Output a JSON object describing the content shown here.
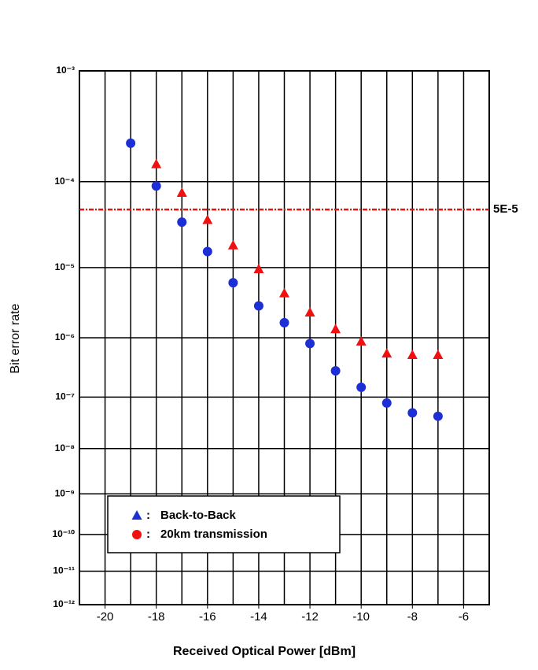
{
  "chart_data": {
    "type": "scatter",
    "xlabel": "Received Optical Power [dBm]",
    "ylabel": "Bit error rate",
    "x": [
      -19,
      -18,
      -17,
      -16,
      -15,
      -14,
      -13,
      -12,
      -11,
      -10,
      -9,
      -8,
      -7
    ],
    "series": [
      {
        "name": "Back-to-Back",
        "color": "#1c2fd6",
        "marker": "circle",
        "legend_marker": "triangle",
        "values": [
          0.00024,
          9e-05,
          3.6e-05,
          1.6e-05,
          6.3e-06,
          3e-06,
          1.7e-06,
          8.1e-07,
          2.9e-07,
          1.5e-07,
          7.8e-08,
          5.1e-08,
          4.4e-08
        ]
      },
      {
        "name": "20km transmission",
        "color": "#f01010",
        "marker": "triangle",
        "legend_marker": "circle",
        "values": [
          null,
          0.00015,
          7.6e-05,
          3.8e-05,
          1.9e-05,
          9.5e-06,
          4.5e-06,
          2.4e-06,
          1.35e-06,
          8.7e-07,
          5.6e-07,
          5.3e-07,
          5.3e-07
        ]
      }
    ],
    "xlim": [
      -21,
      -5
    ],
    "xticks": [
      -20,
      -18,
      -16,
      -14,
      -12,
      -10,
      -8,
      -6
    ],
    "xminorticks": [
      -19,
      -17,
      -15,
      -13,
      -11,
      -9,
      -7
    ],
    "ylim": [
      0.001,
      1e-12
    ],
    "yscale": "log-neg-log",
    "yticks": [
      {
        "value": 0.001,
        "label": "10⁻³"
      },
      {
        "value": 0.0001,
        "label": "10⁻⁴"
      },
      {
        "value": 1e-05,
        "label": "10⁻⁵"
      },
      {
        "value": 1e-06,
        "label": "10⁻⁶"
      },
      {
        "value": 1e-07,
        "label": "10⁻⁷"
      },
      {
        "value": 1e-08,
        "label": "10⁻⁸"
      },
      {
        "value": 1e-09,
        "label": "10⁻⁹"
      },
      {
        "value": 1e-10,
        "label": "10⁻¹⁰"
      },
      {
        "value": 1e-11,
        "label": "10⁻¹¹"
      },
      {
        "value": 1e-12,
        "label": "10⁻¹²"
      }
    ],
    "grid": true,
    "reference_lines": [
      {
        "value": 5e-05,
        "label": "5E-5",
        "color": "#f01010"
      }
    ],
    "legend": "lower-left"
  }
}
